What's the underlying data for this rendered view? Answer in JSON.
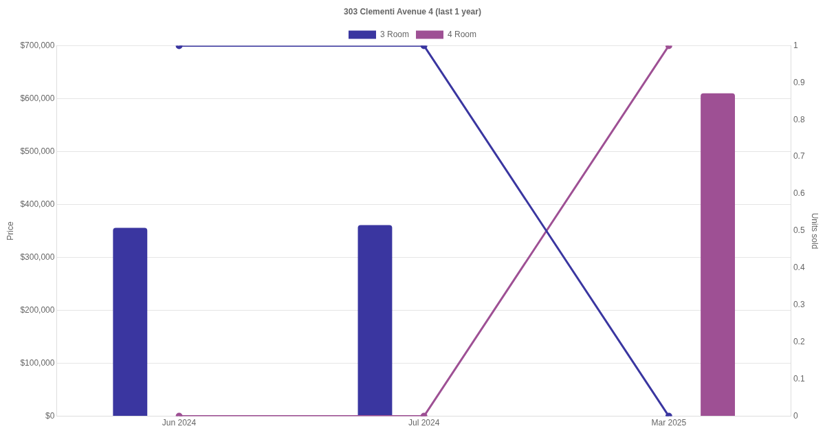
{
  "chart_data": {
    "type": "bar",
    "title": "303 Clementi Avenue 4 (last 1 year)",
    "categories": [
      "Jun 2024",
      "Jul 2024",
      "Mar 2025"
    ],
    "series": [
      {
        "name": "3 Room",
        "color": "#3a36a0",
        "values": [
          356000,
          361000,
          null
        ]
      },
      {
        "name": "4 Room",
        "color": "#9e5094",
        "values": [
          null,
          null,
          610000
        ]
      },
      {
        "type": "line",
        "axis": "y2",
        "color": "#3a36a0",
        "values": [
          1,
          1,
          0
        ]
      },
      {
        "type": "line",
        "axis": "y2",
        "color": "#9e5094",
        "values": [
          0,
          0,
          1
        ]
      }
    ],
    "ylabel": "Price",
    "y2label": "Units sold",
    "ylim": [
      0,
      700000
    ],
    "yticks": [
      {
        "value": 0,
        "label": "$0"
      },
      {
        "value": 100000,
        "label": "$100,000"
      },
      {
        "value": 200000,
        "label": "$200,000"
      },
      {
        "value": 300000,
        "label": "$300,000"
      },
      {
        "value": 400000,
        "label": "$400,000"
      },
      {
        "value": 500000,
        "label": "$500,000"
      },
      {
        "value": 600000,
        "label": "$600,000"
      },
      {
        "value": 700000,
        "label": "$700,000"
      }
    ],
    "y2lim": [
      0,
      1
    ],
    "y2ticks": [
      0,
      0.1,
      0.2,
      0.3,
      0.4,
      0.5,
      0.6,
      0.7,
      0.8,
      0.9,
      1
    ],
    "grid": "y",
    "legend": "top",
    "marker": "circle",
    "line_style": "solid"
  }
}
